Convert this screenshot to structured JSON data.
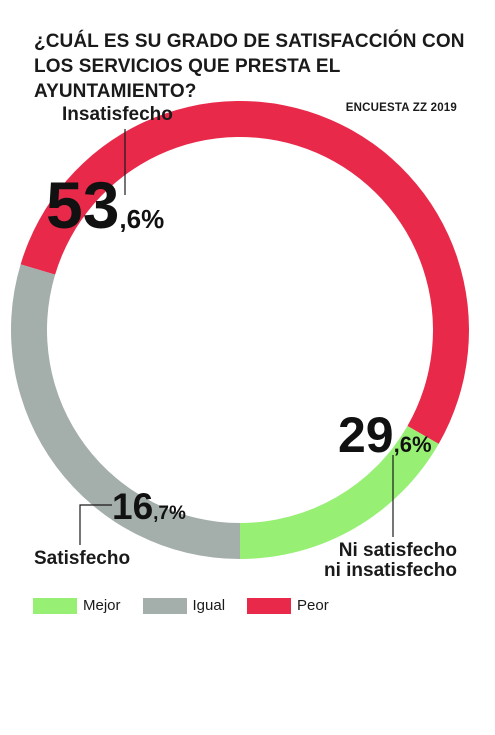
{
  "title": "¿CUÁL ES SU GRADO DE SATISFACCIÓN CON LOS SERVICIOS QUE PRESTA EL AYUNTAMIENTO?",
  "source": "ENCUESTA ZZ 2019",
  "chart_data": {
    "type": "pie",
    "variant": "donut",
    "title": "¿CUÁL ES SU GRADO DE SATISFACCIÓN CON LOS SERVICIOS QUE PRESTA EL AYUNTAMIENTO?",
    "slices": [
      {
        "label": "Insatisfecho",
        "value": 53.6,
        "int": "53",
        "dec": ",6%",
        "color": "#e8294a",
        "legend": "Peor"
      },
      {
        "label": "Ni satisfecho ni insatisfecho",
        "label_lines": [
          "Ni satisfecho",
          "ni insatisfecho"
        ],
        "value": 29.6,
        "int": "29",
        "dec": ",6%",
        "color": "#a4aeab",
        "legend": "Igual"
      },
      {
        "label": "Satisfecho",
        "value": 16.7,
        "int": "16",
        "dec": ",7%",
        "color": "#97ef74",
        "legend": "Mejor"
      }
    ]
  },
  "legend": [
    {
      "label": "Mejor",
      "color": "#97ef74"
    },
    {
      "label": "Igual",
      "color": "#a4aeab"
    },
    {
      "label": "Peor",
      "color": "#e8294a"
    }
  ]
}
